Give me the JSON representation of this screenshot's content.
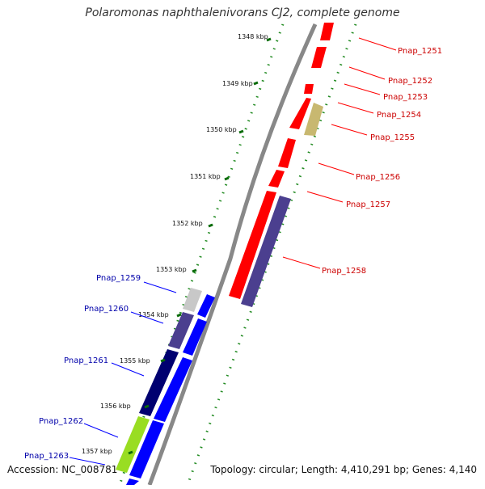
{
  "title": "Polaromonas naphthalenivorans CJ2, complete genome",
  "accession": "Accession: NC_008781",
  "topology": "Topology: circular; Length: 4,410,291 bp; Genes: 4,140",
  "colors": {
    "forward_gene": "#ff0000",
    "reverse_gene": "#0000ff",
    "forward_label": "#cc0000",
    "reverse_label": "#0000aa",
    "backbone": "#888888",
    "tick_dots": "#228b22"
  },
  "scale_labels": [
    "1348 kbp",
    "1349 kbp",
    "1350 kbp",
    "1351 kbp",
    "1352 kbp",
    "1353 kbp",
    "1354 kbp",
    "1355 kbp",
    "1356 kbp",
    "1357 kbp"
  ],
  "forward_genes": [
    {
      "label": "Pnap_1251",
      "color": "#ff0000"
    },
    {
      "label": "Pnap_1252",
      "color": "#ff0000"
    },
    {
      "label": "Pnap_1253",
      "color": "#ff0000"
    },
    {
      "label": "Pnap_1254",
      "color": "#c8b870"
    },
    {
      "label": "Pnap_1255",
      "color": "#ff0000"
    },
    {
      "label": "Pnap_1256",
      "color": "#ff0000"
    },
    {
      "label": "Pnap_1257",
      "color": "#ff0000"
    },
    {
      "label": "Pnap_1258",
      "color": "#4b3f8f"
    }
  ],
  "reverse_genes": [
    {
      "label": "Pnap_1259",
      "color": "#c8c8c8"
    },
    {
      "label": "Pnap_1260",
      "color": "#4b3f8f"
    },
    {
      "label": "Pnap_1261",
      "color": "#000070"
    },
    {
      "label": "Pnap_1262",
      "color": "#99dd22"
    },
    {
      "label": "Pnap_1263",
      "color": "#0000ff"
    }
  ]
}
